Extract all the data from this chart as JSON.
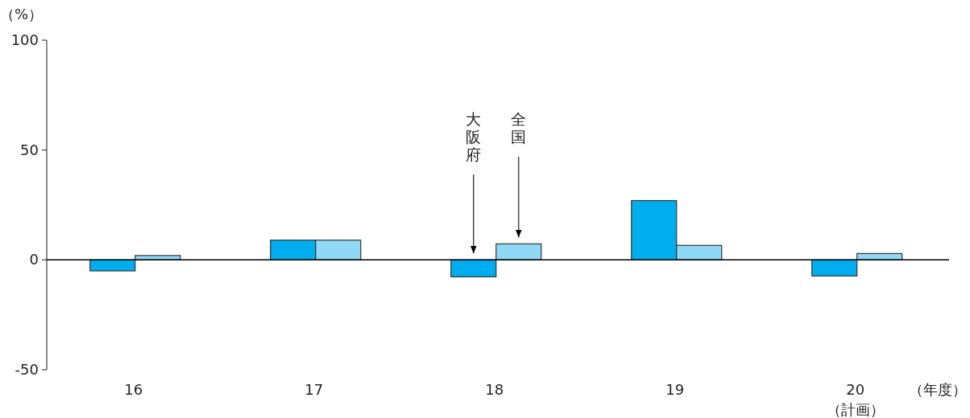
{
  "chart_data": {
    "type": "bar",
    "categories": [
      "16",
      "17",
      "18",
      "19",
      "20（計画）"
    ],
    "series": [
      {
        "name": "大阪府",
        "color": "#00aeef",
        "values": [
          -5,
          9,
          -7.7,
          27,
          -7.3
        ]
      },
      {
        "name": "全国",
        "color": "#8fd8f6",
        "values": [
          2,
          9,
          7.3,
          6.6,
          2.9
        ]
      }
    ],
    "ylabel": "（%）",
    "xlabel": "（年度）",
    "ylim": [
      -50,
      100
    ],
    "yticks": [
      -50,
      0,
      50,
      100
    ]
  }
}
